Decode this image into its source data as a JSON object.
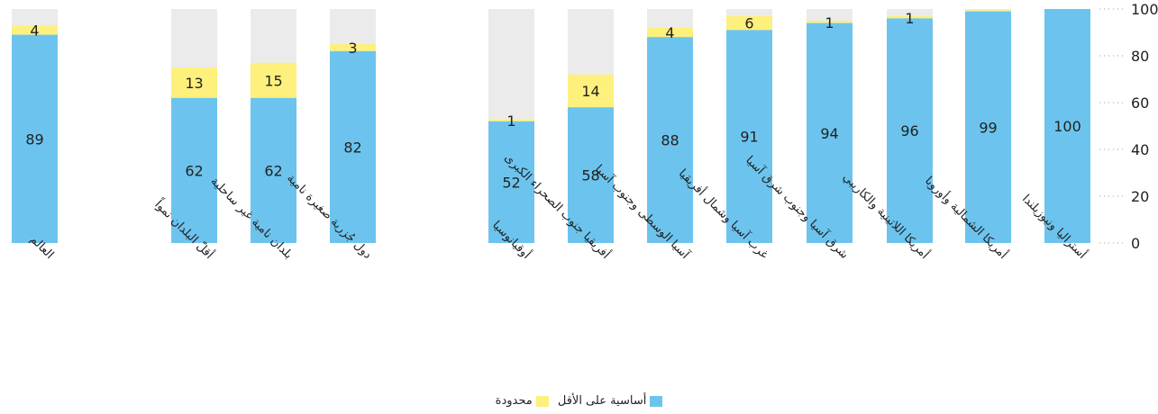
{
  "chart_data": {
    "type": "bar",
    "stacked": true,
    "orientation": "vertical",
    "y_axis_position": "right",
    "ylim": [
      0,
      100
    ],
    "yticks": [
      0,
      20,
      40,
      60,
      80,
      100
    ],
    "grid": true,
    "legend_position": "bottom-center",
    "categories": [
      "العالم",
      "أقلّ البلدان نمواً",
      "بلدان نامية غير ساحلية",
      "دول جُزرية صغيرة نامية",
      "أوقيانوسيا",
      "أفريقيا جنوب الصحراء الكبرى",
      "آسيا الوسطى وجنوب آسيا",
      "غرب آسيا وشمال أفريقيا",
      "شرق آسيا وجنوب شرق آسيا",
      "أمريكا اللاتينية والكاريبي",
      "أمريكا الشمالية وأوروبا",
      "أستراليا ونيوزيلندا"
    ],
    "series": [
      {
        "name": "أساسية على الأقل",
        "color": "#6CC4EE",
        "values": [
          89,
          62,
          62,
          82,
          52,
          58,
          88,
          91,
          94,
          96,
          99,
          100
        ],
        "labels": [
          "89",
          "62",
          "62",
          "82",
          "52",
          "58",
          "88",
          "91",
          "94",
          "96",
          "99",
          "100"
        ]
      },
      {
        "name": "محدودة",
        "color": "#FDF07C",
        "values": [
          4,
          13,
          15,
          3,
          1,
          14,
          4,
          6,
          1,
          1,
          0.5,
          0
        ],
        "labels": [
          "4",
          "13",
          "15",
          "3",
          "1",
          "14",
          "4",
          "6",
          "1",
          "1",
          "",
          ""
        ]
      }
    ],
    "remainder_color": "#EBEBEB"
  },
  "legend": {
    "items": [
      {
        "label": "أساسية على الأقل",
        "color": "#6CC4EE"
      },
      {
        "label": "محدودة",
        "color": "#FDF07C"
      }
    ]
  }
}
